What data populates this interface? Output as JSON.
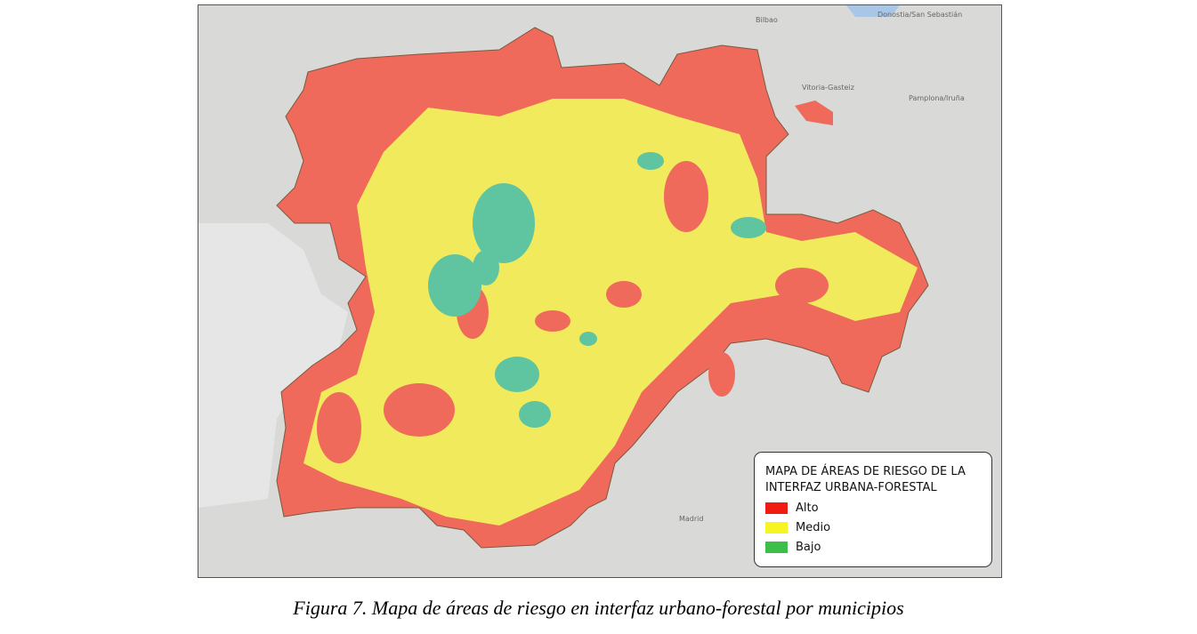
{
  "map": {
    "basemap_labels": [
      "Bilbao",
      "Vitoria-Gasteiz",
      "Pamplona/Iruña",
      "Donostia/San Sebastián",
      "Madrid"
    ],
    "colors": {
      "alto": "#ef6a5b",
      "medio": "#f1ea5c",
      "bajo": "#5fc4a0",
      "background": "#d9d9d7"
    }
  },
  "legend": {
    "title_line1": "MAPA DE ÁREAS DE RIESGO DE LA",
    "title_line2": "INTERFAZ URBANA-FORESTAL",
    "items": [
      {
        "label": "Alto",
        "color": "#f01c12"
      },
      {
        "label": "Medio",
        "color": "#f5f523"
      },
      {
        "label": "Bajo",
        "color": "#3cbf4a"
      }
    ]
  },
  "caption": "Figura 7. Mapa de áreas de riesgo en interfaz urbano-forestal por municipios"
}
